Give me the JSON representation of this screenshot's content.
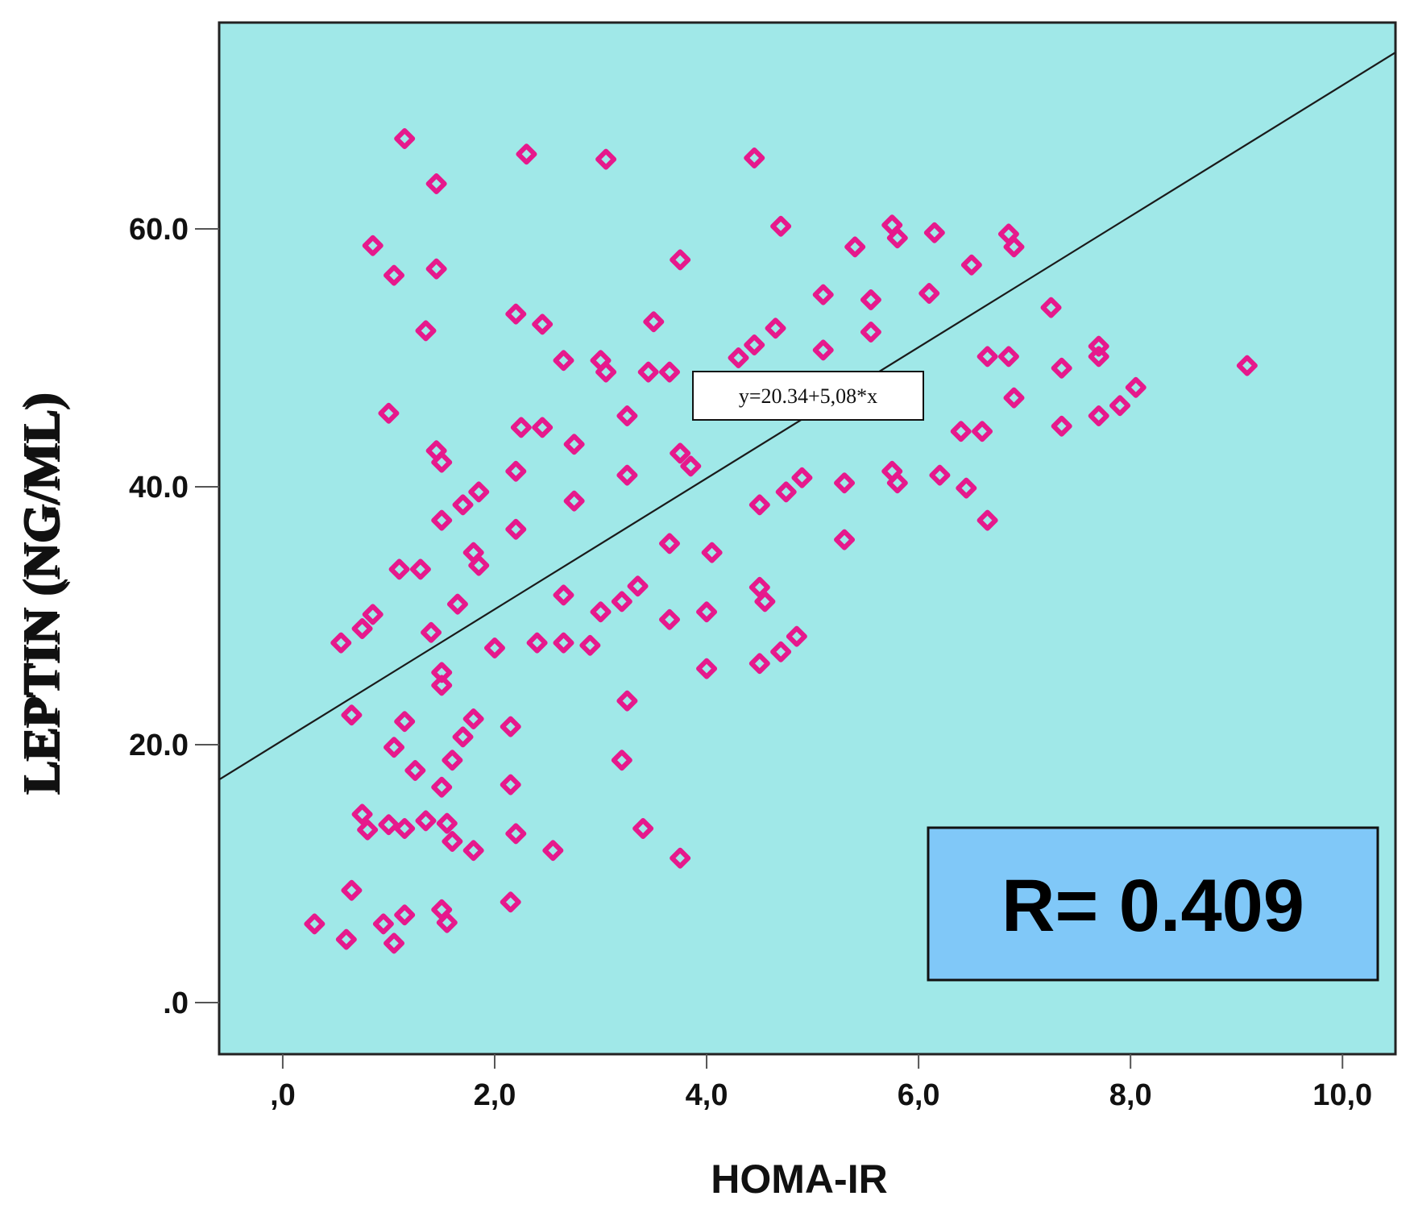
{
  "colors": {
    "plot_background": "#a0e8e8",
    "marker": "#e6198c",
    "fit_line": "#1a1a1a",
    "r_box": "#80c8f8",
    "y_title_shadow": "#c88000"
  },
  "annotations": {
    "equation": "y=20.34+5,08*x",
    "r_value": "R= 0.409"
  },
  "chart_data": {
    "type": "scatter",
    "xlabel": "HOMA-IR",
    "ylabel": "LEPTIN (NG/ML)",
    "xlim": [
      -0.6,
      10.5
    ],
    "ylim": [
      -4,
      76
    ],
    "x_ticks": [
      0,
      2,
      4,
      6,
      8,
      10
    ],
    "x_tick_labels": [
      ",0",
      "2,0",
      "4,0",
      "6,0",
      "8,0",
      "10,0"
    ],
    "y_ticks": [
      0,
      20,
      40,
      60
    ],
    "y_tick_labels": [
      ".0",
      "20.0",
      "40.0",
      "60.0"
    ],
    "grid": false,
    "fit_line": {
      "intercept": 20.34,
      "slope": 5.08
    },
    "points": [
      [
        1.15,
        67.0
      ],
      [
        2.3,
        65.8
      ],
      [
        3.05,
        65.4
      ],
      [
        4.45,
        65.5
      ],
      [
        1.45,
        63.5
      ],
      [
        0.85,
        58.7
      ],
      [
        1.05,
        56.4
      ],
      [
        1.45,
        56.9
      ],
      [
        3.75,
        57.6
      ],
      [
        4.7,
        60.2
      ],
      [
        5.4,
        58.6
      ],
      [
        5.75,
        60.3
      ],
      [
        5.8,
        59.3
      ],
      [
        6.15,
        59.7
      ],
      [
        6.5,
        57.2
      ],
      [
        6.85,
        59.6
      ],
      [
        6.9,
        58.6
      ],
      [
        1.35,
        52.1
      ],
      [
        2.2,
        53.4
      ],
      [
        2.45,
        52.6
      ],
      [
        3.5,
        52.8
      ],
      [
        5.1,
        54.9
      ],
      [
        5.55,
        54.5
      ],
      [
        6.1,
        55.0
      ],
      [
        7.25,
        53.9
      ],
      [
        4.45,
        51.0
      ],
      [
        4.65,
        52.3
      ],
      [
        5.55,
        52.0
      ],
      [
        2.65,
        49.8
      ],
      [
        3.0,
        49.8
      ],
      [
        3.05,
        48.9
      ],
      [
        3.45,
        48.9
      ],
      [
        3.65,
        48.9
      ],
      [
        4.3,
        50.0
      ],
      [
        5.1,
        50.6
      ],
      [
        6.65,
        50.1
      ],
      [
        6.85,
        50.1
      ],
      [
        7.35,
        49.2
      ],
      [
        7.7,
        50.9
      ],
      [
        7.7,
        50.1
      ],
      [
        9.1,
        49.4
      ],
      [
        1.0,
        45.7
      ],
      [
        1.45,
        42.8
      ],
      [
        1.5,
        41.9
      ],
      [
        2.25,
        44.6
      ],
      [
        2.45,
        44.6
      ],
      [
        2.75,
        43.3
      ],
      [
        3.25,
        45.5
      ],
      [
        3.75,
        42.6
      ],
      [
        3.85,
        41.6
      ],
      [
        6.4,
        44.3
      ],
      [
        6.6,
        44.3
      ],
      [
        6.9,
        46.9
      ],
      [
        7.35,
        44.7
      ],
      [
        7.7,
        45.5
      ],
      [
        7.9,
        46.3
      ],
      [
        8.05,
        47.7
      ],
      [
        2.2,
        41.2
      ],
      [
        3.25,
        40.9
      ],
      [
        1.5,
        37.4
      ],
      [
        1.7,
        38.6
      ],
      [
        1.85,
        39.6
      ],
      [
        2.2,
        36.7
      ],
      [
        2.75,
        38.9
      ],
      [
        4.5,
        38.6
      ],
      [
        4.75,
        39.6
      ],
      [
        4.9,
        40.7
      ],
      [
        5.3,
        40.3
      ],
      [
        5.75,
        41.2
      ],
      [
        5.8,
        40.3
      ],
      [
        6.2,
        40.9
      ],
      [
        6.45,
        39.9
      ],
      [
        6.65,
        37.4
      ],
      [
        1.1,
        33.6
      ],
      [
        1.3,
        33.6
      ],
      [
        1.8,
        34.9
      ],
      [
        1.85,
        33.9
      ],
      [
        3.65,
        35.6
      ],
      [
        4.05,
        34.9
      ],
      [
        5.3,
        35.9
      ],
      [
        0.55,
        27.9
      ],
      [
        0.75,
        29.0
      ],
      [
        0.85,
        30.1
      ],
      [
        1.4,
        28.7
      ],
      [
        1.65,
        30.9
      ],
      [
        2.4,
        27.9
      ],
      [
        2.65,
        27.9
      ],
      [
        2.65,
        31.6
      ],
      [
        2.9,
        27.7
      ],
      [
        3.0,
        30.3
      ],
      [
        3.2,
        31.1
      ],
      [
        3.35,
        32.3
      ],
      [
        3.65,
        29.7
      ],
      [
        4.0,
        30.3
      ],
      [
        4.5,
        32.2
      ],
      [
        4.55,
        31.1
      ],
      [
        4.7,
        27.2
      ],
      [
        4.85,
        28.4
      ],
      [
        2.0,
        27.5
      ],
      [
        1.5,
        25.6
      ],
      [
        1.5,
        24.6
      ],
      [
        4.0,
        25.9
      ],
      [
        4.5,
        26.3
      ],
      [
        0.65,
        22.3
      ],
      [
        1.15,
        21.8
      ],
      [
        1.05,
        19.8
      ],
      [
        1.25,
        18.0
      ],
      [
        1.5,
        16.7
      ],
      [
        1.6,
        18.8
      ],
      [
        1.7,
        20.6
      ],
      [
        1.8,
        22.0
      ],
      [
        2.15,
        21.4
      ],
      [
        2.15,
        16.9
      ],
      [
        3.2,
        18.8
      ],
      [
        3.25,
        23.4
      ],
      [
        0.75,
        14.6
      ],
      [
        0.8,
        13.4
      ],
      [
        1.0,
        13.8
      ],
      [
        1.15,
        13.5
      ],
      [
        1.35,
        14.1
      ],
      [
        1.55,
        13.9
      ],
      [
        1.6,
        12.5
      ],
      [
        1.8,
        11.8
      ],
      [
        2.2,
        13.1
      ],
      [
        2.55,
        11.8
      ],
      [
        3.4,
        13.5
      ],
      [
        3.75,
        11.2
      ],
      [
        0.3,
        6.1
      ],
      [
        0.6,
        4.9
      ],
      [
        0.65,
        8.7
      ],
      [
        0.95,
        6.1
      ],
      [
        1.05,
        4.6
      ],
      [
        1.15,
        6.8
      ],
      [
        1.5,
        7.2
      ],
      [
        1.55,
        6.2
      ],
      [
        2.15,
        7.8
      ]
    ]
  }
}
